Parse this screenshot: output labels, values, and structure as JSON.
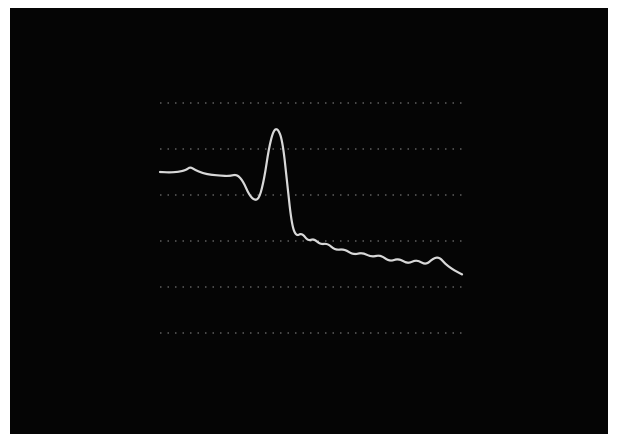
{
  "colors": {
    "frame": "#ffffff",
    "screen": "#050505",
    "grid": "#8a8a8a",
    "trace": "#d8d8d8"
  },
  "grid": {
    "style": "dotted",
    "horizontal_lines": 6
  },
  "trace": {
    "description_free": true,
    "samples": [
      [
        0.0,
        0.3
      ],
      [
        0.03,
        0.302
      ],
      [
        0.06,
        0.3
      ],
      [
        0.085,
        0.292
      ],
      [
        0.1,
        0.278
      ],
      [
        0.115,
        0.29
      ],
      [
        0.14,
        0.305
      ],
      [
        0.17,
        0.312
      ],
      [
        0.2,
        0.316
      ],
      [
        0.23,
        0.318
      ],
      [
        0.255,
        0.31
      ],
      [
        0.275,
        0.34
      ],
      [
        0.295,
        0.4
      ],
      [
        0.315,
        0.425
      ],
      [
        0.33,
        0.41
      ],
      [
        0.345,
        0.33
      ],
      [
        0.36,
        0.2
      ],
      [
        0.375,
        0.12
      ],
      [
        0.39,
        0.11
      ],
      [
        0.405,
        0.16
      ],
      [
        0.42,
        0.33
      ],
      [
        0.435,
        0.52
      ],
      [
        0.45,
        0.58
      ],
      [
        0.47,
        0.565
      ],
      [
        0.49,
        0.6
      ],
      [
        0.51,
        0.59
      ],
      [
        0.53,
        0.615
      ],
      [
        0.555,
        0.61
      ],
      [
        0.58,
        0.64
      ],
      [
        0.61,
        0.635
      ],
      [
        0.64,
        0.66
      ],
      [
        0.67,
        0.65
      ],
      [
        0.7,
        0.67
      ],
      [
        0.73,
        0.66
      ],
      [
        0.76,
        0.69
      ],
      [
        0.79,
        0.675
      ],
      [
        0.82,
        0.7
      ],
      [
        0.85,
        0.68
      ],
      [
        0.88,
        0.705
      ],
      [
        0.905,
        0.675
      ],
      [
        0.925,
        0.67
      ],
      [
        0.945,
        0.7
      ],
      [
        0.965,
        0.72
      ],
      [
        0.985,
        0.735
      ],
      [
        1.0,
        0.745
      ]
    ]
  }
}
